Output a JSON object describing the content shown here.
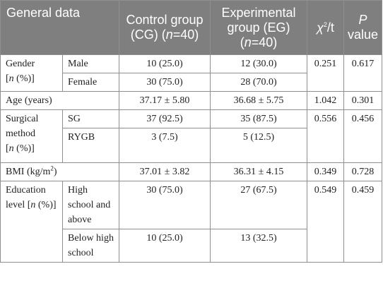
{
  "header": {
    "c0": "General data",
    "c1a": "Control group (CG) (",
    "c1n": "n",
    "c1b": "=40)",
    "c2a": "Experimental group (EG) (",
    "c2n": "n",
    "c2b": "=40)",
    "c3a": "χ",
    "c3sup": "2",
    "c3b": "/t",
    "c4a": "P",
    "c4b": " value"
  },
  "rows": {
    "gender": {
      "label_a": "Gender",
      "label_b": "[",
      "label_n": "n",
      "label_c": " (%)]",
      "sub1": "Male",
      "cg1": "10 (25.0)",
      "eg1": "12 (30.0)",
      "sub2": "Female",
      "cg2": "30 (75.0)",
      "eg2": "28 (70.0)",
      "stat": "0.251",
      "p": "0.617"
    },
    "age": {
      "label": "Age (years)",
      "cg": "37.17 ± 5.80",
      "eg": "36.68 ± 5.75",
      "stat": "1.042",
      "p": "0.301"
    },
    "surgical": {
      "label_a": "Surgical method",
      "label_b": "[",
      "label_n": "n",
      "label_c": " (%)]",
      "sub1": "SG",
      "cg1": "37 (92.5)",
      "eg1": "35 (87.5)",
      "sub2": "RYGB",
      "cg2": "3 (7.5)",
      "eg2": "5 (12.5)",
      "stat": "0.556",
      "p": "0.456"
    },
    "bmi": {
      "label_a": "BMI (kg/m",
      "label_sup": "2",
      "label_b": ")",
      "cg": "37.01 ± 3.82",
      "eg": "36.31 ± 4.15",
      "stat": "0.349",
      "p": "0.728"
    },
    "education": {
      "label_a": "Education level [",
      "label_n": "n",
      "label_c": " (%)]",
      "sub1": "High school and above",
      "cg1": "30 (75.0)",
      "eg1": "27 (67.5)",
      "sub2": "Below high school",
      "cg2": "10 (25.0)",
      "eg2": "13 (32.5)",
      "stat": "0.549",
      "p": "0.459"
    }
  }
}
